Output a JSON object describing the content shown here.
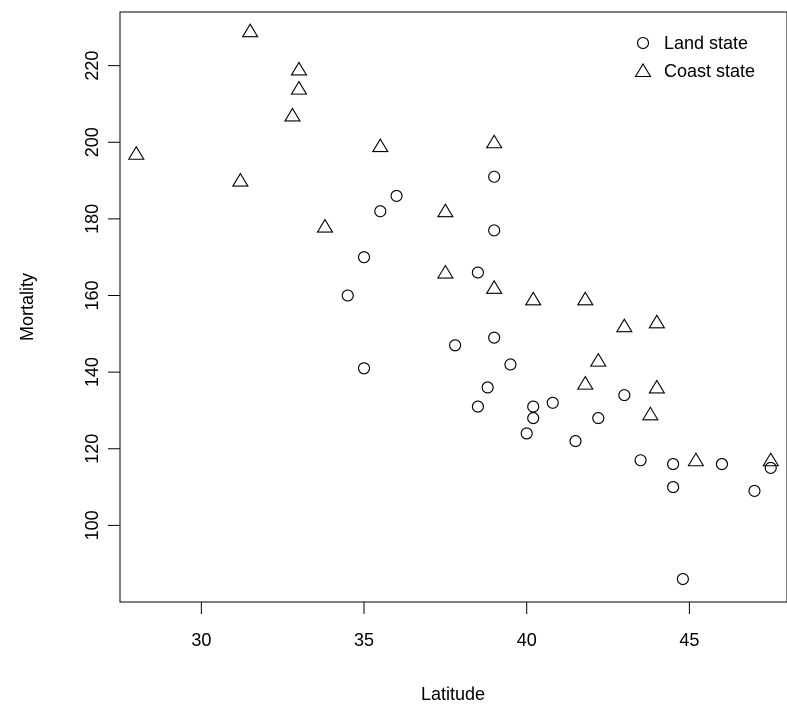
{
  "chart_data": {
    "type": "scatter",
    "xlabel": "Latitude",
    "ylabel": "Mortality",
    "xlim": [
      27.5,
      48.0
    ],
    "ylim": [
      80,
      234
    ],
    "x_ticks": [
      30,
      35,
      40,
      45
    ],
    "y_ticks": [
      100,
      120,
      140,
      160,
      180,
      200,
      220
    ],
    "grid": false,
    "legend_position": "top-right",
    "series": [
      {
        "name": "Land state",
        "marker": "circle",
        "points": [
          [
            34.5,
            160
          ],
          [
            35.0,
            170
          ],
          [
            35.0,
            141
          ],
          [
            35.5,
            182
          ],
          [
            36.0,
            186
          ],
          [
            37.8,
            147
          ],
          [
            38.5,
            166
          ],
          [
            38.5,
            131
          ],
          [
            38.8,
            136
          ],
          [
            39.0,
            191
          ],
          [
            39.0,
            177
          ],
          [
            39.0,
            149
          ],
          [
            39.5,
            142
          ],
          [
            40.0,
            124
          ],
          [
            40.2,
            131
          ],
          [
            40.2,
            128
          ],
          [
            40.8,
            132
          ],
          [
            41.5,
            122
          ],
          [
            42.2,
            128
          ],
          [
            43.0,
            134
          ],
          [
            43.5,
            117
          ],
          [
            44.5,
            116
          ],
          [
            44.5,
            110
          ],
          [
            44.8,
            86
          ],
          [
            46.0,
            116
          ],
          [
            47.0,
            109
          ],
          [
            47.5,
            115
          ]
        ]
      },
      {
        "name": "Coast state",
        "marker": "triangle",
        "points": [
          [
            28.0,
            197
          ],
          [
            31.2,
            190
          ],
          [
            31.5,
            229
          ],
          [
            32.8,
            207
          ],
          [
            33.0,
            219
          ],
          [
            33.0,
            214
          ],
          [
            33.8,
            178
          ],
          [
            35.5,
            199
          ],
          [
            37.5,
            182
          ],
          [
            37.5,
            166
          ],
          [
            39.0,
            200
          ],
          [
            39.0,
            162
          ],
          [
            40.2,
            159
          ],
          [
            41.8,
            159
          ],
          [
            41.8,
            137
          ],
          [
            42.2,
            143
          ],
          [
            43.0,
            152
          ],
          [
            43.8,
            129
          ],
          [
            44.0,
            153
          ],
          [
            44.0,
            136
          ],
          [
            45.2,
            117
          ],
          [
            47.5,
            117
          ]
        ]
      }
    ]
  },
  "colors": {
    "background": "#ffffff",
    "ink": "#000000"
  }
}
